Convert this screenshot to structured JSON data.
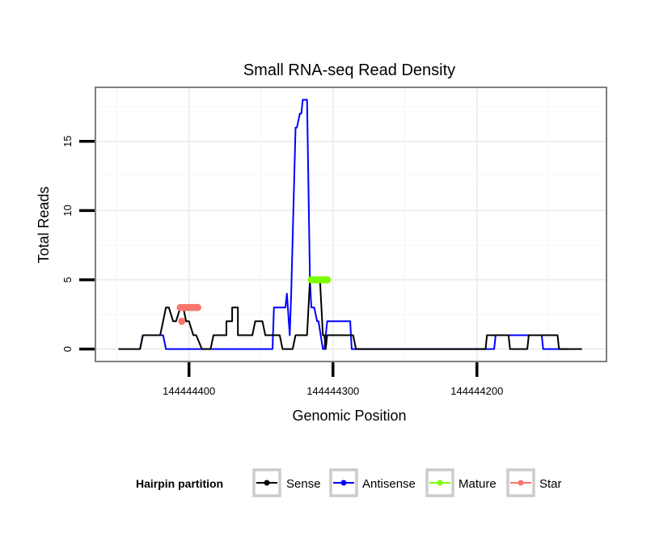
{
  "chart_data": {
    "type": "line",
    "title": "Small RNA-seq Read Density",
    "xlabel": "Genomic Position",
    "ylabel": "Total Reads",
    "x_reversed": true,
    "xlim": [
      144444465,
      144444110
    ],
    "ylim": [
      -0.9,
      18.9
    ],
    "x_ticks": [
      144444400,
      144444300,
      144444200
    ],
    "x_tick_labels": [
      "144444400",
      "144444300",
      "144444200"
    ],
    "y_ticks": [
      0,
      5,
      10,
      15
    ],
    "y_tick_labels": [
      "0",
      "5",
      "10",
      "15"
    ],
    "grid": true,
    "legend": {
      "title": "Hairpin partition",
      "position": "bottom",
      "entries": [
        {
          "key": "sense",
          "label": "Sense",
          "color": "#000000"
        },
        {
          "key": "antisense",
          "label": "Antisense",
          "color": "#0000ff"
        },
        {
          "key": "mature",
          "label": "Mature",
          "color": "#7cfc00"
        },
        {
          "key": "star",
          "label": "Star",
          "color": "#f8766d"
        }
      ]
    },
    "series": [
      {
        "name": "Sense",
        "key": "sense",
        "color": "#000000",
        "x": [
          144444449,
          144444434,
          144444432,
          144444430,
          144444420,
          144444418,
          144444416,
          144444414,
          144444411,
          144444409,
          144444406,
          144444404,
          144444402,
          144444400,
          144444397,
          144444395,
          144444391,
          144444389,
          144444385,
          144444383,
          144444374,
          144444374,
          144444370,
          144444370,
          144444366,
          144444366,
          144444356,
          144444354,
          144444349,
          144444347,
          144444344,
          144444342,
          144444337,
          144444335,
          144444328,
          144444326,
          144444318,
          144444316,
          144444311,
          144444311,
          144444309,
          144444307,
          144444306,
          144444305,
          144444304,
          144444302,
          144444286,
          144444284,
          144444194,
          144444193,
          144444178,
          144444177,
          144444165,
          144444164,
          144444144,
          144444143,
          144444127
        ],
        "y": [
          0,
          0,
          1,
          1,
          1,
          2,
          3,
          3,
          2,
          2,
          3,
          3,
          2,
          2,
          1,
          1,
          0,
          0,
          0,
          1,
          1,
          2,
          2,
          3,
          3,
          1,
          1,
          2,
          2,
          1,
          1,
          1,
          1,
          0,
          0,
          1,
          1,
          5,
          5,
          5,
          5,
          1,
          1,
          0,
          1,
          1,
          1,
          0,
          0,
          1,
          1,
          0,
          0,
          1,
          1,
          0,
          0
        ]
      },
      {
        "name": "Antisense",
        "key": "antisense",
        "color": "#0000ff",
        "x": [
          144444434,
          144444432,
          144444418,
          144444416,
          144444342,
          144444341,
          144444333,
          144444332,
          144444330,
          144444329,
          144444326,
          144444325,
          144444323,
          144444322,
          144444321,
          144444320,
          144444319,
          144444318,
          144444316,
          144444315,
          144444313,
          144444311,
          144444310,
          144444307,
          144444306,
          144444304,
          144444303,
          144444301,
          144444300,
          144444288,
          144444287,
          144444188,
          144444187,
          144444155,
          144444154,
          144444137
        ],
        "y": [
          0,
          1,
          1,
          0,
          0,
          3,
          3,
          4,
          1,
          4,
          16,
          16,
          17,
          17,
          18,
          18,
          18,
          18,
          5,
          3,
          3,
          2,
          2,
          0,
          0,
          2,
          2,
          2,
          2,
          2,
          0,
          0,
          1,
          1,
          0,
          0
        ]
      },
      {
        "name": "Mature",
        "key": "mature",
        "color": "#7cfc00",
        "x": [
          144444315,
          144444314,
          144444312,
          144444310,
          144444308,
          144444306,
          144444304
        ],
        "y": [
          5,
          5,
          5,
          5,
          5,
          5,
          5
        ]
      },
      {
        "name": "Star",
        "key": "star",
        "color": "#f8766d",
        "x": [
          144444406,
          144444404,
          144444402,
          144444400,
          144444398,
          144444396,
          144444394,
          144444405
        ],
        "y": [
          3,
          3,
          3,
          3,
          3,
          3,
          3,
          2
        ]
      }
    ]
  }
}
